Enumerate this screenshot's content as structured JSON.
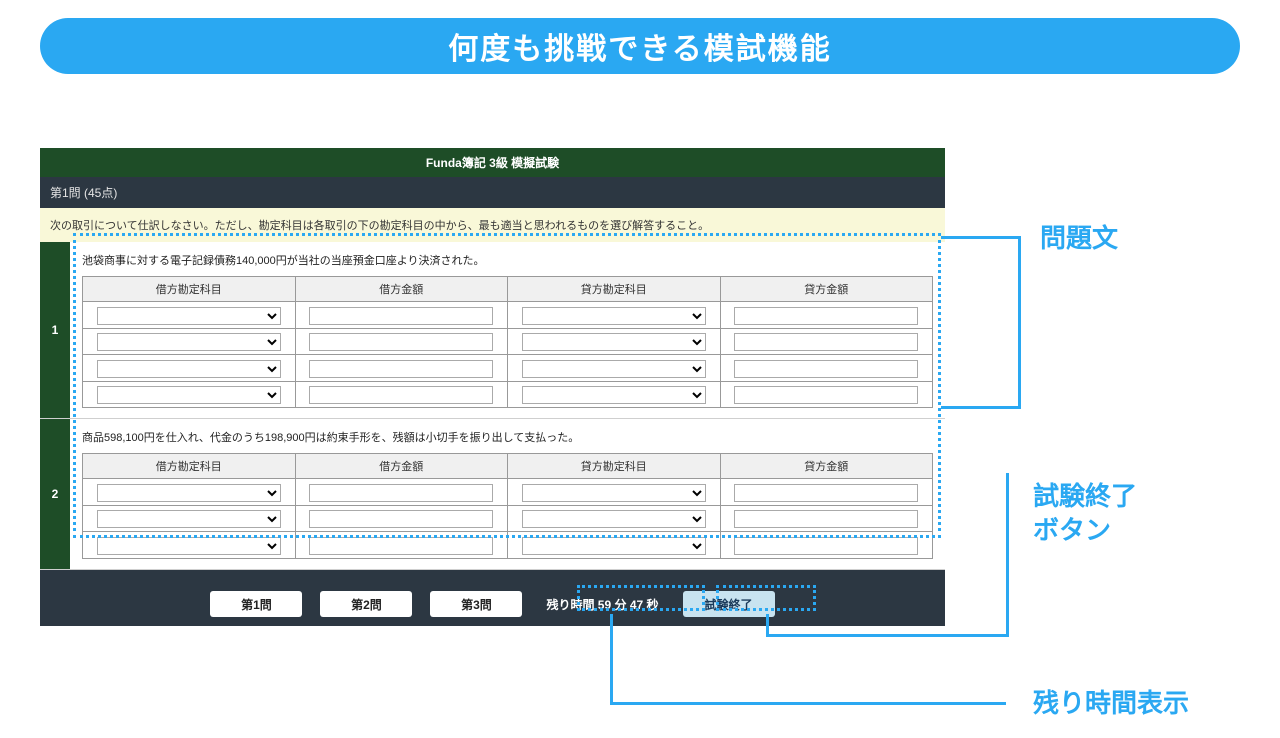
{
  "hero": {
    "title": "何度も挑戦できる模試機能"
  },
  "app": {
    "title": "Funda簿記 3級 模擬試験",
    "question_label": "第1問 (45点)",
    "instruction": "次の取引について仕訳しなさい。ただし、勘定科目は各取引の下の勘定科目の中から、最も適当と思われるものを選び解答すること。",
    "columns": {
      "debit_account": "借方勘定科目",
      "debit_amount": "借方金額",
      "credit_account": "貸方勘定科目",
      "credit_amount": "貸方金額"
    },
    "problems": [
      {
        "num": "1",
        "text": "池袋商事に対する電子記録債務140,000円が当社の当座預金口座より決済された。",
        "rows": 4
      },
      {
        "num": "2",
        "text": "商品598,100円を仕入れ、代金のうち198,900円は約束手形を、残額は小切手を振り出して支払った。",
        "rows": 3
      }
    ],
    "nav": {
      "q1": "第1問",
      "q2": "第2問",
      "q3": "第3問"
    },
    "timer": "残り時間 59 分 47 秒",
    "end": "試験終了"
  },
  "annotations": {
    "problem_text": "問題文",
    "end_button": "試験終了\nボタン",
    "timer": "残り時間表示"
  },
  "colors": {
    "accent": "#2aa8f2",
    "dark_bg": "#2c3742",
    "green": "#1e4d27",
    "instruction_bg": "#f9f8d8",
    "end_btn_bg": "#c8e3f0"
  }
}
